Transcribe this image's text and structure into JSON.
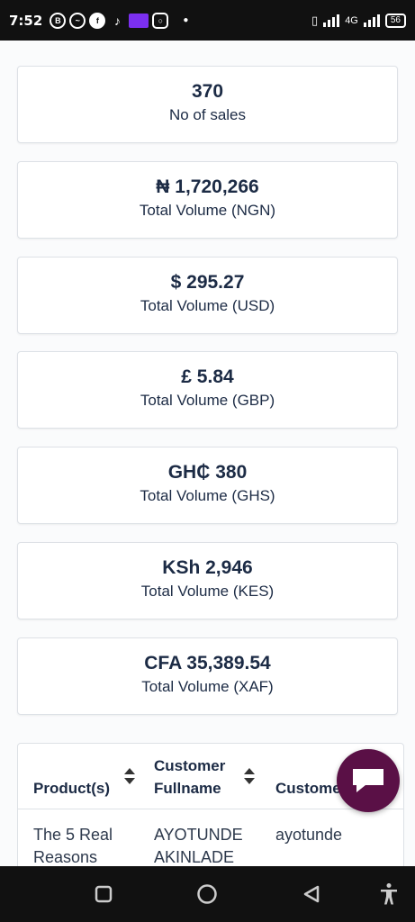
{
  "status_bar": {
    "time": "7:52",
    "network": "4G",
    "battery": "56"
  },
  "stats": [
    {
      "value": "370",
      "label": "No of sales"
    },
    {
      "value": "₦ 1,720,266",
      "label": "Total Volume (NGN)"
    },
    {
      "value": "$ 295.27",
      "label": "Total Volume (USD)"
    },
    {
      "value": "£ 5.84",
      "label": "Total Volume (GBP)"
    },
    {
      "value": "GH₵ 380",
      "label": "Total Volume (GHS)"
    },
    {
      "value": "KSh 2,946",
      "label": "Total Volume (KES)"
    },
    {
      "value": "CFA 35,389.54",
      "label": "Total Volume (XAF)"
    }
  ],
  "table": {
    "headers": {
      "product": "Product(s)",
      "fullname_line1": "Customer",
      "fullname_line2": "Fullname",
      "email": "Customer Email"
    },
    "rows": [
      {
        "product_line1": "The 5 Real",
        "product_line2": "Reasons",
        "name_line1": "AYOTUNDE",
        "name_line2": "AKINLADE",
        "email": "ayotunde"
      }
    ]
  },
  "icons": {
    "chat": "chat-icon",
    "nav_recent": "square-icon",
    "nav_home": "circle-icon",
    "nav_back": "back-triangle-icon",
    "accessibility": "accessibility-icon"
  },
  "colors": {
    "accent": "#5a1046",
    "text": "#1c2b45"
  }
}
